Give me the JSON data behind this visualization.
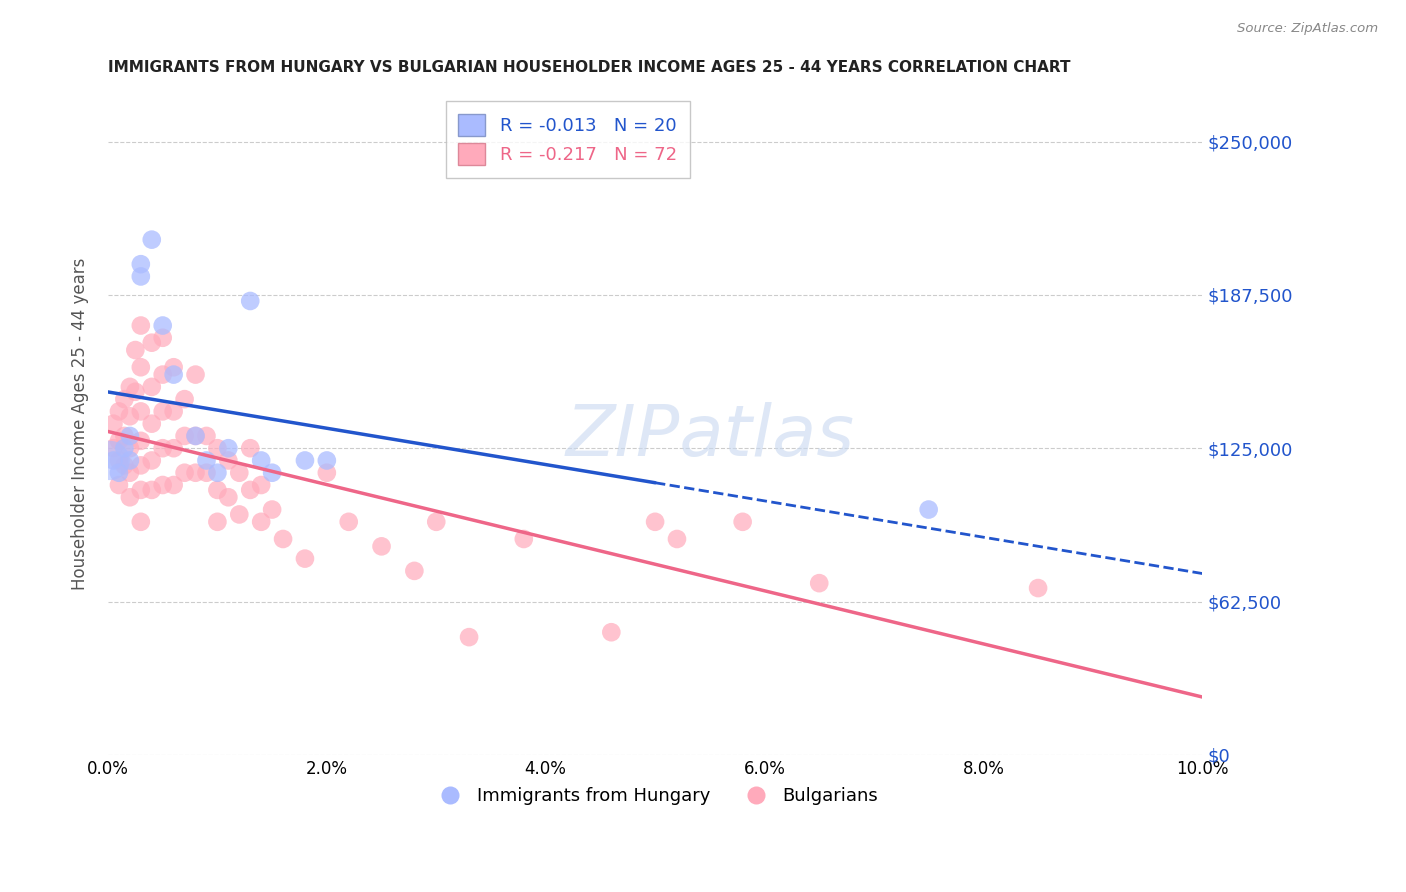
{
  "title": "IMMIGRANTS FROM HUNGARY VS BULGARIAN HOUSEHOLDER INCOME AGES 25 - 44 YEARS CORRELATION CHART",
  "source": "Source: ZipAtlas.com",
  "ylabel": "Householder Income Ages 25 - 44 years",
  "xlabel_ticks": [
    "0.0%",
    "2.0%",
    "4.0%",
    "6.0%",
    "8.0%",
    "10.0%"
  ],
  "xlabel_vals": [
    0.0,
    0.02,
    0.04,
    0.06,
    0.08,
    0.1
  ],
  "ytick_labels": [
    "$250,000",
    "$187,500",
    "$125,000",
    "$62,500"
  ],
  "ytick_vals": [
    250000,
    187500,
    125000,
    62500
  ],
  "ytick_labels_full": [
    "$0",
    "$62,500",
    "$125,000",
    "$187,500",
    "$250,000"
  ],
  "ytick_vals_full": [
    0,
    62500,
    125000,
    187500,
    250000
  ],
  "xlim": [
    0.0,
    0.1
  ],
  "ylim": [
    0,
    270000
  ],
  "r_hungary": -0.013,
  "n_hungary": 20,
  "r_bulgarian": -0.217,
  "n_bulgarian": 72,
  "legend_label_hungary": "Immigrants from Hungary",
  "legend_label_bulgarian": "Bulgarians",
  "color_hungary": "#aabbff",
  "color_bulgarian": "#ffaabb",
  "line_color_hungary": "#2255cc",
  "line_color_bulgarian": "#ee6688",
  "watermark": "ZIPatlas",
  "hungary_points": [
    [
      0.0005,
      120000
    ],
    [
      0.001,
      115000
    ],
    [
      0.0015,
      125000
    ],
    [
      0.002,
      130000
    ],
    [
      0.002,
      120000
    ],
    [
      0.003,
      200000
    ],
    [
      0.003,
      195000
    ],
    [
      0.004,
      210000
    ],
    [
      0.005,
      175000
    ],
    [
      0.006,
      155000
    ],
    [
      0.008,
      130000
    ],
    [
      0.009,
      120000
    ],
    [
      0.01,
      115000
    ],
    [
      0.011,
      125000
    ],
    [
      0.013,
      185000
    ],
    [
      0.014,
      120000
    ],
    [
      0.015,
      115000
    ],
    [
      0.018,
      120000
    ],
    [
      0.02,
      120000
    ],
    [
      0.075,
      100000
    ]
  ],
  "bulgarian_points": [
    [
      0.0005,
      135000
    ],
    [
      0.0005,
      125000
    ],
    [
      0.001,
      140000
    ],
    [
      0.001,
      128000
    ],
    [
      0.001,
      120000
    ],
    [
      0.001,
      110000
    ],
    [
      0.0015,
      145000
    ],
    [
      0.0015,
      130000
    ],
    [
      0.0015,
      118000
    ],
    [
      0.002,
      150000
    ],
    [
      0.002,
      138000
    ],
    [
      0.002,
      125000
    ],
    [
      0.002,
      115000
    ],
    [
      0.002,
      105000
    ],
    [
      0.0025,
      165000
    ],
    [
      0.0025,
      148000
    ],
    [
      0.003,
      175000
    ],
    [
      0.003,
      158000
    ],
    [
      0.003,
      140000
    ],
    [
      0.003,
      128000
    ],
    [
      0.003,
      118000
    ],
    [
      0.003,
      108000
    ],
    [
      0.003,
      95000
    ],
    [
      0.004,
      168000
    ],
    [
      0.004,
      150000
    ],
    [
      0.004,
      135000
    ],
    [
      0.004,
      120000
    ],
    [
      0.004,
      108000
    ],
    [
      0.005,
      170000
    ],
    [
      0.005,
      155000
    ],
    [
      0.005,
      140000
    ],
    [
      0.005,
      125000
    ],
    [
      0.005,
      110000
    ],
    [
      0.006,
      158000
    ],
    [
      0.006,
      140000
    ],
    [
      0.006,
      125000
    ],
    [
      0.006,
      110000
    ],
    [
      0.007,
      145000
    ],
    [
      0.007,
      130000
    ],
    [
      0.007,
      115000
    ],
    [
      0.008,
      155000
    ],
    [
      0.008,
      130000
    ],
    [
      0.008,
      115000
    ],
    [
      0.009,
      130000
    ],
    [
      0.009,
      115000
    ],
    [
      0.01,
      125000
    ],
    [
      0.01,
      108000
    ],
    [
      0.01,
      95000
    ],
    [
      0.011,
      120000
    ],
    [
      0.011,
      105000
    ],
    [
      0.012,
      115000
    ],
    [
      0.012,
      98000
    ],
    [
      0.013,
      125000
    ],
    [
      0.013,
      108000
    ],
    [
      0.014,
      110000
    ],
    [
      0.014,
      95000
    ],
    [
      0.015,
      100000
    ],
    [
      0.016,
      88000
    ],
    [
      0.018,
      80000
    ],
    [
      0.02,
      115000
    ],
    [
      0.022,
      95000
    ],
    [
      0.025,
      85000
    ],
    [
      0.028,
      75000
    ],
    [
      0.03,
      95000
    ],
    [
      0.033,
      48000
    ],
    [
      0.038,
      88000
    ],
    [
      0.046,
      50000
    ],
    [
      0.05,
      95000
    ],
    [
      0.052,
      88000
    ],
    [
      0.058,
      95000
    ],
    [
      0.065,
      70000
    ],
    [
      0.085,
      68000
    ]
  ]
}
